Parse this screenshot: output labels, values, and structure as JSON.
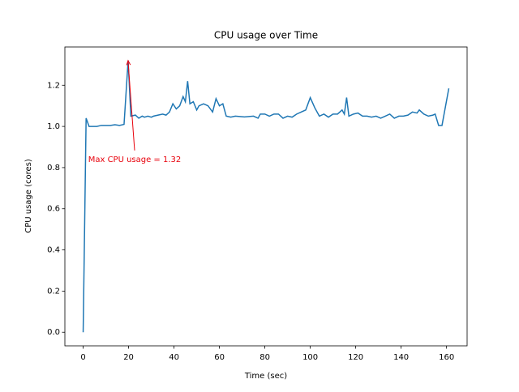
{
  "chart_data": {
    "type": "line",
    "title": "CPU usage over Time",
    "xlabel": "Time (sec)",
    "ylabel": "CPU usage (cores)",
    "annotation": "Max CPU usage = 1.32",
    "annotation_color": "#e8000b",
    "series": [
      {
        "name": "CPU usage",
        "color": "#1f77b4",
        "x": [
          0,
          1.3,
          2.6,
          4,
          6,
          8,
          10,
          12,
          14,
          16,
          18,
          19.8,
          21,
          23,
          24.5,
          26,
          27,
          28.5,
          30,
          31,
          33,
          35,
          36.5,
          38,
          39.5,
          41,
          42.5,
          44,
          45,
          46,
          47,
          48.5,
          50,
          51,
          53,
          55,
          57,
          58.5,
          60,
          61.5,
          63,
          65,
          67,
          69,
          71,
          73,
          75,
          77,
          78,
          80,
          82,
          84,
          86,
          88,
          90,
          92,
          94,
          96,
          98,
          100,
          102,
          104,
          106,
          108,
          110,
          112,
          114,
          115,
          116,
          117,
          119,
          121,
          123,
          125,
          127,
          129,
          131,
          133,
          135,
          137,
          139,
          141,
          143,
          145,
          147,
          148,
          150,
          152,
          154,
          155,
          156.5,
          158,
          161
        ],
        "values": [
          0.0,
          1.04,
          1.0,
          1.0,
          1.0,
          1.005,
          1.005,
          1.005,
          1.008,
          1.005,
          1.01,
          1.32,
          1.05,
          1.055,
          1.04,
          1.05,
          1.045,
          1.05,
          1.045,
          1.05,
          1.055,
          1.06,
          1.055,
          1.07,
          1.11,
          1.085,
          1.1,
          1.145,
          1.12,
          1.22,
          1.11,
          1.12,
          1.08,
          1.1,
          1.11,
          1.1,
          1.07,
          1.135,
          1.1,
          1.11,
          1.05,
          1.045,
          1.05,
          1.048,
          1.046,
          1.048,
          1.05,
          1.04,
          1.06,
          1.06,
          1.05,
          1.06,
          1.06,
          1.04,
          1.05,
          1.045,
          1.06,
          1.07,
          1.08,
          1.14,
          1.09,
          1.05,
          1.06,
          1.045,
          1.06,
          1.06,
          1.08,
          1.06,
          1.14,
          1.05,
          1.06,
          1.065,
          1.05,
          1.05,
          1.045,
          1.05,
          1.04,
          1.05,
          1.06,
          1.04,
          1.05,
          1.05,
          1.055,
          1.07,
          1.065,
          1.08,
          1.06,
          1.05,
          1.055,
          1.06,
          1.005,
          1.005,
          1.185
        ]
      }
    ],
    "xlim": [
      -8.05,
      169.05
    ],
    "xticks": [
      0,
      20,
      40,
      60,
      80,
      100,
      120,
      140,
      160
    ],
    "ylim": [
      -0.066,
      1.386
    ],
    "yticks": [
      {
        "value": 0,
        "label": "0.0"
      },
      {
        "value": 0.2,
        "label": "0.2"
      },
      {
        "value": 0.4,
        "label": "0.4"
      },
      {
        "value": 0.6,
        "label": "0.6"
      },
      {
        "value": 0.8,
        "label": "0.8"
      },
      {
        "value": 1.0,
        "label": "1.0"
      },
      {
        "value": 1.2,
        "label": "1.2"
      }
    ]
  }
}
